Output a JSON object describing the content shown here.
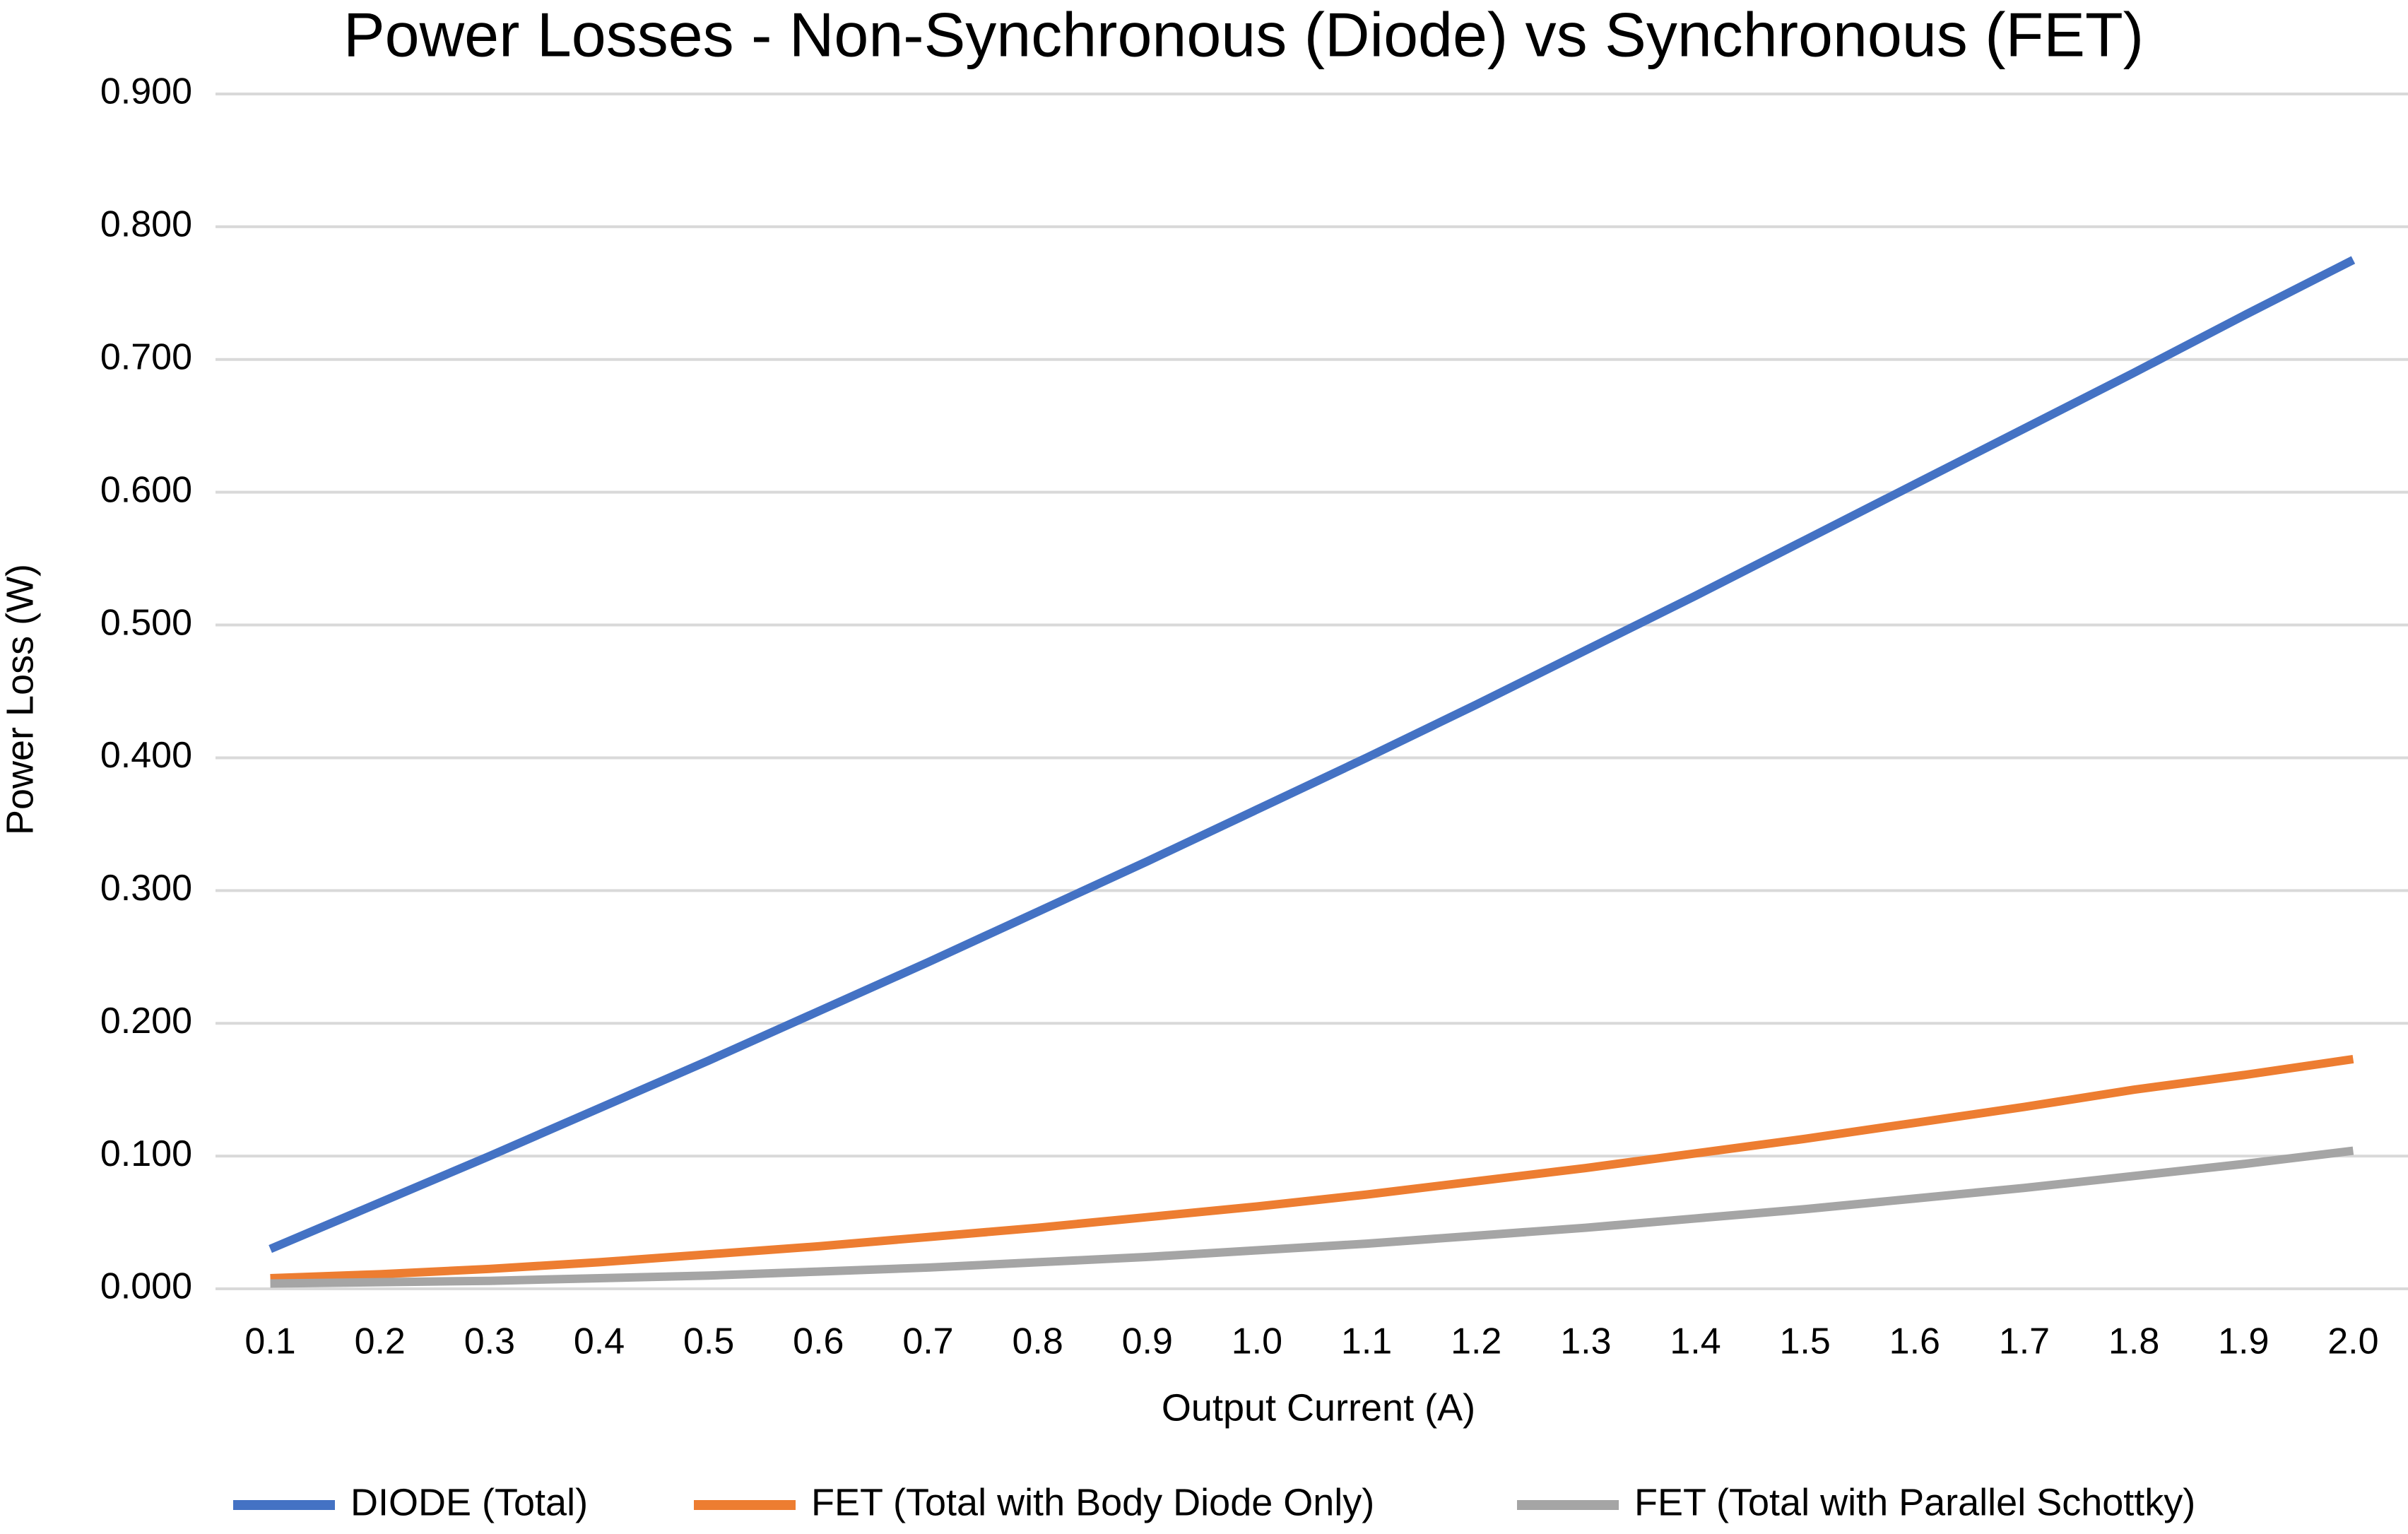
{
  "chart_data": {
    "type": "line",
    "title": "Power Losses - Non-Synchronous (Diode) vs Synchronous (FET)",
    "x_label": "Output Current (A)",
    "y_label": "Power Loss (W)",
    "categories": [
      "0.1",
      "0.2",
      "0.3",
      "0.4",
      "0.5",
      "0.6",
      "0.7",
      "0.8",
      "0.9",
      "1.0",
      "1.1",
      "1.2",
      "1.3",
      "1.4",
      "1.5",
      "1.6",
      "1.7",
      "1.8",
      "1.9",
      "2.0"
    ],
    "series": [
      {
        "name": "DIODE (Total)",
        "color": "#4472c4",
        "values": [
          0.03,
          0.065,
          0.1,
          0.136,
          0.172,
          0.209,
          0.246,
          0.284,
          0.322,
          0.361,
          0.4,
          0.44,
          0.481,
          0.522,
          0.564,
          0.606,
          0.648,
          0.69,
          0.733,
          0.775
        ]
      },
      {
        "name": "FET (Total with Body Diode Only)",
        "color": "#ed7d31",
        "values": [
          0.008,
          0.011,
          0.015,
          0.02,
          0.026,
          0.032,
          0.039,
          0.046,
          0.054,
          0.062,
          0.071,
          0.081,
          0.091,
          0.102,
          0.113,
          0.125,
          0.137,
          0.15,
          0.161,
          0.173
        ]
      },
      {
        "name": "FET (Total with Parallel Schottky)",
        "color": "#a5a5a5",
        "values": [
          0.004,
          0.005,
          0.006,
          0.008,
          0.01,
          0.013,
          0.016,
          0.02,
          0.024,
          0.029,
          0.034,
          0.04,
          0.046,
          0.053,
          0.06,
          0.068,
          0.076,
          0.085,
          0.094,
          0.104
        ]
      }
    ],
    "ylim": [
      0,
      0.9
    ],
    "yticks": [
      {
        "value": 0,
        "label": "0.000"
      },
      {
        "value": 0.1,
        "label": "0.100"
      },
      {
        "value": 0.2,
        "label": "0.200"
      },
      {
        "value": 0.3,
        "label": "0.300"
      },
      {
        "value": 0.4,
        "label": "0.400"
      },
      {
        "value": 0.5,
        "label": "0.500"
      },
      {
        "value": 0.6,
        "label": "0.600"
      },
      {
        "value": 0.7,
        "label": "0.700"
      },
      {
        "value": 0.8,
        "label": "0.800"
      },
      {
        "value": 0.9,
        "label": "0.900"
      }
    ],
    "grid": true,
    "legend": "bottom"
  }
}
